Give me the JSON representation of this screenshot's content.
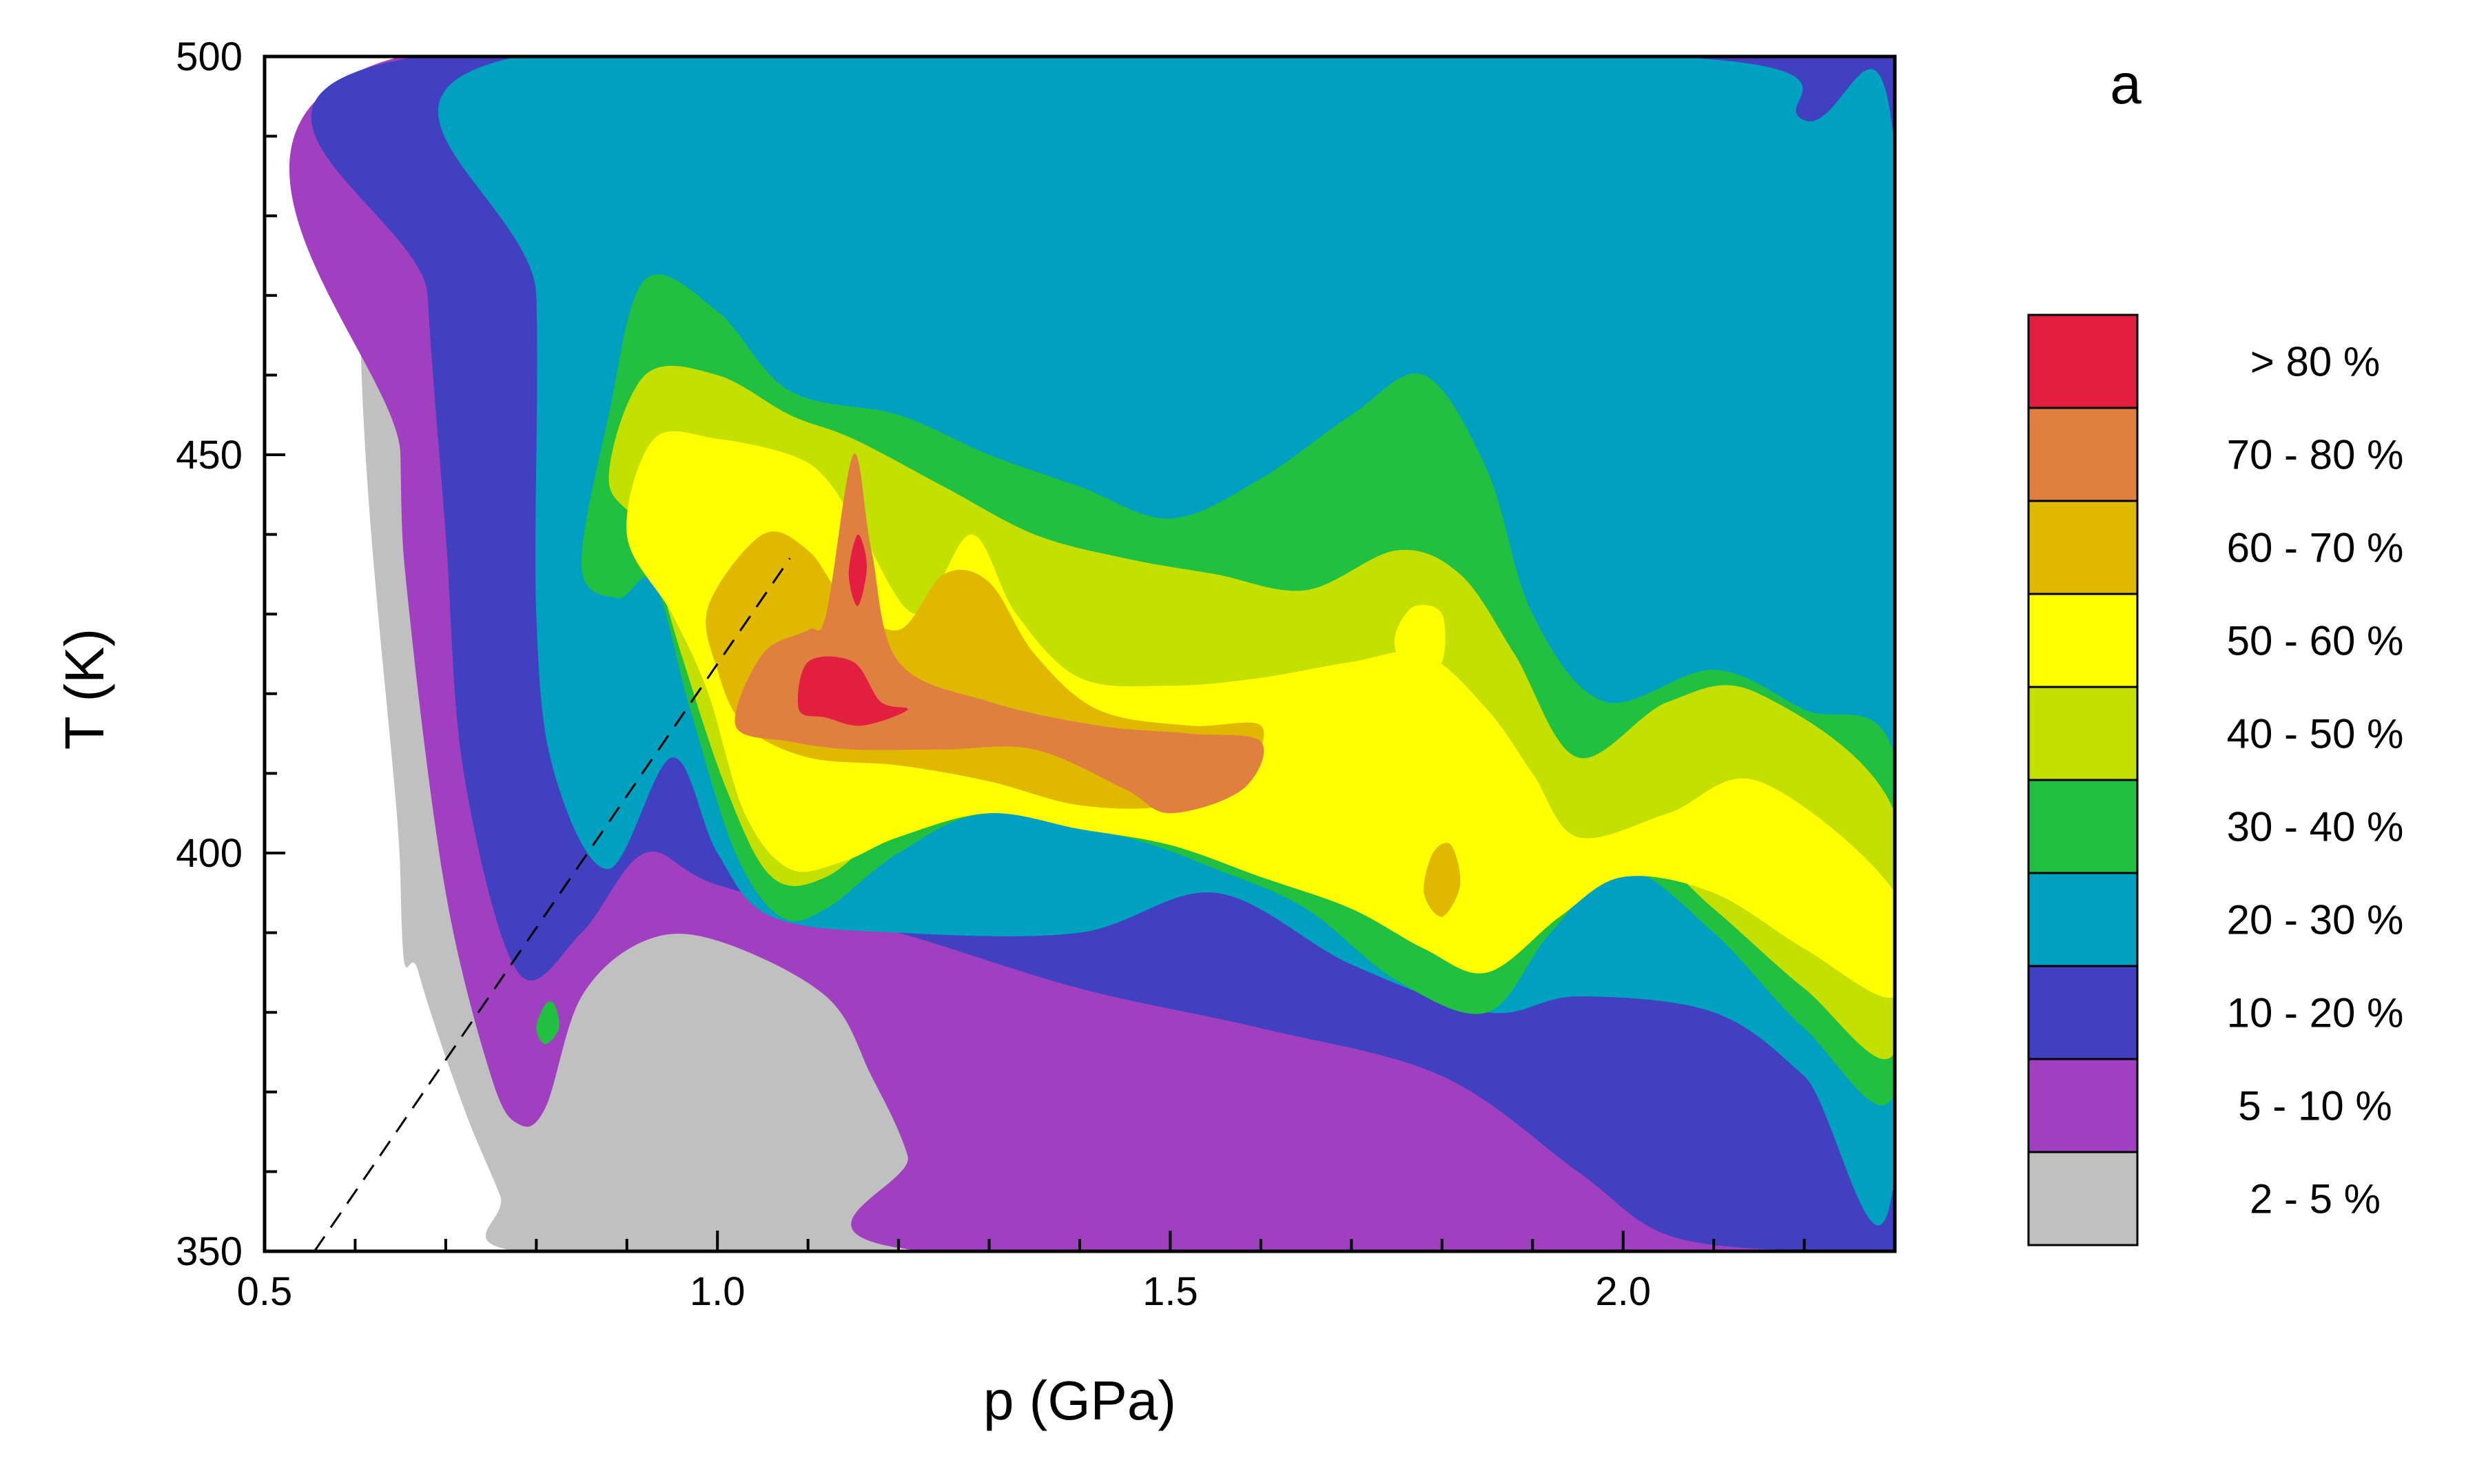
{
  "chart_data": {
    "type": "heatmap",
    "subtype": "filled-contour",
    "panel_label": "a",
    "xlabel": "p (GPa)",
    "ylabel": "T (K)",
    "xlim": [
      0.5,
      2.3
    ],
    "ylim": [
      350,
      500
    ],
    "x_ticks": [
      {
        "value": 0.5,
        "label": "0.5"
      },
      {
        "value": 1.0,
        "label": "1.0"
      },
      {
        "value": 1.5,
        "label": "1.5"
      },
      {
        "value": 2.0,
        "label": "2.0"
      }
    ],
    "y_ticks": [
      {
        "value": 350,
        "label": "350"
      },
      {
        "value": 400,
        "label": "400"
      },
      {
        "value": 450,
        "label": "450"
      },
      {
        "value": 500,
        "label": "500"
      }
    ],
    "x_minor_step": 0.1,
    "y_minor_step": 10,
    "grid": false,
    "legend_position": "right",
    "levels": [
      {
        "label": "> 80 %",
        "min": 80,
        "max": 100,
        "color": "#e21f3f"
      },
      {
        "label": "70 - 80 %",
        "min": 70,
        "max": 80,
        "color": "#e08040"
      },
      {
        "label": "60 - 70 %",
        "min": 60,
        "max": 70,
        "color": "#e0b800"
      },
      {
        "label": "50 - 60 %",
        "min": 50,
        "max": 60,
        "color": "#ffff00"
      },
      {
        "label": "40 - 50 %",
        "min": 40,
        "max": 50,
        "color": "#c4e000"
      },
      {
        "label": "30 - 40 %",
        "min": 30,
        "max": 40,
        "color": "#22c040"
      },
      {
        "label": "20 - 30 %",
        "min": 20,
        "max": 30,
        "color": "#00a0c0"
      },
      {
        "label": "10 - 20 %",
        "min": 10,
        "max": 20,
        "color": "#4040c0"
      },
      {
        "label": "5 - 10 %",
        "min": 5,
        "max": 10,
        "color": "#a040c0"
      },
      {
        "label": "2 - 5 %",
        "min": 2,
        "max": 5,
        "color": "#c0c0c0"
      }
    ],
    "dashed_line": {
      "points": [
        [
          0.555,
          350
        ],
        [
          1.08,
          437
        ]
      ]
    },
    "regions": [
      {
        "name": "band-2-5",
        "level": 2,
        "points": [
          [
            0.65,
            500
          ],
          [
            0.65,
            397
          ],
          [
            0.67,
            385
          ],
          [
            0.72,
            368
          ],
          [
            0.76,
            357
          ],
          [
            0.78,
            350
          ],
          [
            1.2,
            350
          ],
          [
            1.24,
            500
          ]
        ]
      },
      {
        "name": "band-5-10",
        "level": 5,
        "points": [
          [
            0.65,
            500
          ],
          [
            0.65,
            450
          ],
          [
            0.66,
            430
          ],
          [
            0.7,
            395
          ],
          [
            0.75,
            372
          ],
          [
            0.78,
            366
          ],
          [
            0.81,
            368
          ],
          [
            0.85,
            382
          ],
          [
            0.92,
            389
          ],
          [
            1.0,
            389
          ],
          [
            1.12,
            382
          ],
          [
            1.17,
            372
          ],
          [
            1.21,
            362
          ],
          [
            1.23,
            350
          ],
          [
            2.28,
            350
          ],
          [
            2.3,
            500
          ]
        ]
      },
      {
        "name": "band-10-20",
        "level": 10,
        "points": [
          [
            0.67,
            500
          ],
          [
            0.68,
            470
          ],
          [
            0.7,
            440
          ],
          [
            0.72,
            410
          ],
          [
            0.78,
            385
          ],
          [
            0.85,
            390
          ],
          [
            0.92,
            400
          ],
          [
            1.0,
            396
          ],
          [
            1.2,
            390
          ],
          [
            1.4,
            383
          ],
          [
            1.6,
            378
          ],
          [
            1.8,
            372
          ],
          [
            1.95,
            360
          ],
          [
            2.05,
            352
          ],
          [
            2.2,
            350
          ],
          [
            2.3,
            350
          ],
          [
            2.3,
            500
          ]
        ]
      },
      {
        "name": "band-20-30",
        "level": 20,
        "points": [
          [
            0.78,
            500
          ],
          [
            0.8,
            470
          ],
          [
            0.8,
            430
          ],
          [
            0.82,
            410
          ],
          [
            0.88,
            398
          ],
          [
            0.95,
            412
          ],
          [
            1.0,
            400
          ],
          [
            1.06,
            392
          ],
          [
            1.2,
            390
          ],
          [
            1.4,
            390
          ],
          [
            1.55,
            395
          ],
          [
            1.7,
            386
          ],
          [
            1.85,
            380
          ],
          [
            1.95,
            382
          ],
          [
            2.1,
            380
          ],
          [
            2.2,
            372
          ],
          [
            2.3,
            360
          ],
          [
            2.3,
            488
          ],
          [
            2.2,
            492
          ],
          [
            2.05,
            500
          ]
        ]
      },
      {
        "name": "band-30-40",
        "level": 30,
        "points": [
          [
            0.85,
            436
          ],
          [
            0.88,
            455
          ],
          [
            0.92,
            472
          ],
          [
            1.0,
            468
          ],
          [
            1.08,
            458
          ],
          [
            1.2,
            455
          ],
          [
            1.3,
            450
          ],
          [
            1.4,
            446
          ],
          [
            1.5,
            442
          ],
          [
            1.6,
            447
          ],
          [
            1.7,
            455
          ],
          [
            1.78,
            460
          ],
          [
            1.85,
            448
          ],
          [
            1.9,
            430
          ],
          [
            1.98,
            419
          ],
          [
            2.1,
            423
          ],
          [
            2.2,
            418
          ],
          [
            2.3,
            412
          ],
          [
            2.3,
            370
          ],
          [
            2.2,
            378
          ],
          [
            2.1,
            390
          ],
          [
            2.0,
            398
          ],
          [
            1.92,
            390
          ],
          [
            1.85,
            380
          ],
          [
            1.75,
            384
          ],
          [
            1.65,
            393
          ],
          [
            1.55,
            398
          ],
          [
            1.45,
            402
          ],
          [
            1.3,
            405
          ],
          [
            1.2,
            400
          ],
          [
            1.12,
            393
          ],
          [
            1.07,
            392
          ],
          [
            1.02,
            400
          ],
          [
            0.97,
            418
          ],
          [
            0.93,
            434
          ],
          [
            0.89,
            432
          ]
        ]
      },
      {
        "name": "band-40-50",
        "level": 40,
        "points": [
          [
            0.88,
            447
          ],
          [
            0.92,
            460
          ],
          [
            1.0,
            460
          ],
          [
            1.08,
            455
          ],
          [
            1.15,
            452
          ],
          [
            1.25,
            446
          ],
          [
            1.35,
            440
          ],
          [
            1.45,
            437
          ],
          [
            1.55,
            435
          ],
          [
            1.65,
            433
          ],
          [
            1.75,
            438
          ],
          [
            1.82,
            435
          ],
          [
            1.88,
            425
          ],
          [
            1.95,
            412
          ],
          [
            2.05,
            419
          ],
          [
            2.15,
            420
          ],
          [
            2.3,
            405
          ],
          [
            2.3,
            375
          ],
          [
            2.2,
            383
          ],
          [
            2.1,
            393
          ],
          [
            2.0,
            402
          ],
          [
            1.92,
            395
          ],
          [
            1.85,
            388
          ],
          [
            1.75,
            390
          ],
          [
            1.68,
            398
          ],
          [
            1.58,
            402
          ],
          [
            1.5,
            404
          ],
          [
            1.4,
            406
          ],
          [
            1.3,
            408
          ],
          [
            1.2,
            404
          ],
          [
            1.12,
            397
          ],
          [
            1.06,
            397
          ],
          [
            1.01,
            408
          ],
          [
            0.96,
            425
          ],
          [
            0.92,
            440
          ]
        ]
      },
      {
        "name": "band-50-60",
        "level": 50,
        "points": [
          [
            0.9,
            440
          ],
          [
            0.93,
            452
          ],
          [
            1.0,
            452
          ],
          [
            1.08,
            450
          ],
          [
            1.12,
            447
          ],
          [
            1.16,
            440
          ],
          [
            1.22,
            430
          ],
          [
            1.28,
            440
          ],
          [
            1.33,
            430
          ],
          [
            1.4,
            422
          ],
          [
            1.5,
            421
          ],
          [
            1.6,
            422
          ],
          [
            1.7,
            424
          ],
          [
            1.78,
            425
          ],
          [
            1.85,
            418
          ],
          [
            1.9,
            410
          ],
          [
            1.95,
            402
          ],
          [
            2.05,
            405
          ],
          [
            2.15,
            409
          ],
          [
            2.3,
            395
          ],
          [
            2.3,
            382
          ],
          [
            2.2,
            388
          ],
          [
            2.1,
            395
          ],
          [
            2.0,
            397
          ],
          [
            1.93,
            392
          ],
          [
            1.85,
            385
          ],
          [
            1.78,
            388
          ],
          [
            1.7,
            393
          ],
          [
            1.6,
            397
          ],
          [
            1.5,
            401
          ],
          [
            1.4,
            403
          ],
          [
            1.3,
            405
          ],
          [
            1.2,
            402
          ],
          [
            1.14,
            399
          ],
          [
            1.08,
            398
          ],
          [
            1.03,
            405
          ],
          [
            0.99,
            420
          ],
          [
            0.95,
            430
          ]
        ]
      },
      {
        "name": "band-60-70",
        "level": 60,
        "points": [
          [
            0.99,
            431
          ],
          [
            1.05,
            440
          ],
          [
            1.1,
            438
          ],
          [
            1.14,
            432
          ],
          [
            1.2,
            428
          ],
          [
            1.25,
            435
          ],
          [
            1.3,
            434
          ],
          [
            1.35,
            425
          ],
          [
            1.42,
            418
          ],
          [
            1.52,
            416
          ],
          [
            1.6,
            416
          ],
          [
            1.58,
            410
          ],
          [
            1.5,
            406
          ],
          [
            1.4,
            406
          ],
          [
            1.3,
            409
          ],
          [
            1.2,
            411
          ],
          [
            1.1,
            412
          ],
          [
            1.03,
            416
          ],
          [
            1.0,
            423
          ]
        ]
      },
      {
        "name": "band-70-80",
        "level": 70,
        "points": [
          [
            1.02,
            416
          ],
          [
            1.05,
            425
          ],
          [
            1.1,
            428
          ],
          [
            1.12,
            430
          ],
          [
            1.15,
            450
          ],
          [
            1.17,
            438
          ],
          [
            1.2,
            424
          ],
          [
            1.3,
            419
          ],
          [
            1.42,
            416
          ],
          [
            1.52,
            415
          ],
          [
            1.6,
            414
          ],
          [
            1.58,
            408
          ],
          [
            1.5,
            405
          ],
          [
            1.45,
            408
          ],
          [
            1.35,
            413
          ],
          [
            1.25,
            413
          ],
          [
            1.15,
            413
          ],
          [
            1.08,
            414
          ]
        ]
      },
      {
        "name": "band-gt80-core",
        "level": 80,
        "points": [
          [
            1.09,
            418
          ],
          [
            1.1,
            424
          ],
          [
            1.15,
            424
          ],
          [
            1.18,
            419
          ],
          [
            1.21,
            418
          ],
          [
            1.16,
            416
          ],
          [
            1.12,
            417
          ]
        ]
      },
      {
        "name": "band-gt80-spike",
        "level": 80,
        "points": [
          [
            1.145,
            435
          ],
          [
            1.155,
            440
          ],
          [
            1.165,
            436
          ],
          [
            1.155,
            431
          ]
        ]
      },
      {
        "name": "spot-20-30-a",
        "level": 20,
        "points": [
          [
            1.79,
            495
          ],
          [
            1.82,
            497
          ],
          [
            1.85,
            495
          ],
          [
            1.86,
            490
          ],
          [
            1.83,
            485
          ],
          [
            1.8,
            487
          ],
          [
            1.79,
            491
          ]
        ]
      },
      {
        "name": "spot-20-30-b",
        "level": 20,
        "points": [
          [
            1.37,
            488
          ],
          [
            1.4,
            490
          ],
          [
            1.43,
            488
          ],
          [
            1.43,
            484
          ],
          [
            1.4,
            482
          ],
          [
            1.37,
            484
          ]
        ]
      },
      {
        "name": "spot-20-30-c",
        "level": 20,
        "points": [
          [
            1.96,
            480
          ],
          [
            2.0,
            485
          ],
          [
            2.05,
            486
          ],
          [
            2.1,
            480
          ],
          [
            2.1,
            470
          ],
          [
            2.05,
            465
          ],
          [
            2.0,
            466
          ],
          [
            1.96,
            472
          ]
        ]
      },
      {
        "name": "spot-20-30-d",
        "level": 20,
        "points": [
          [
            0.88,
            500
          ],
          [
            0.9,
            490
          ],
          [
            0.96,
            493
          ],
          [
            0.98,
            500
          ]
        ]
      },
      {
        "name": "spot-30-40-a",
        "level": 30,
        "points": [
          [
            0.8,
            378
          ],
          [
            0.81,
            381
          ],
          [
            0.82,
            381
          ],
          [
            0.825,
            378
          ],
          [
            0.81,
            376
          ]
        ]
      },
      {
        "name": "spot-60-70-a",
        "level": 60,
        "points": [
          [
            1.78,
            395
          ],
          [
            1.79,
            400
          ],
          [
            1.81,
            401
          ],
          [
            1.82,
            396
          ],
          [
            1.8,
            392
          ]
        ]
      },
      {
        "name": "spot-50-60-a",
        "level": 50,
        "points": [
          [
            1.75,
            428
          ],
          [
            1.77,
            431
          ],
          [
            1.8,
            430
          ],
          [
            1.8,
            424
          ],
          [
            1.77,
            422
          ],
          [
            1.75,
            425
          ]
        ]
      }
    ]
  }
}
